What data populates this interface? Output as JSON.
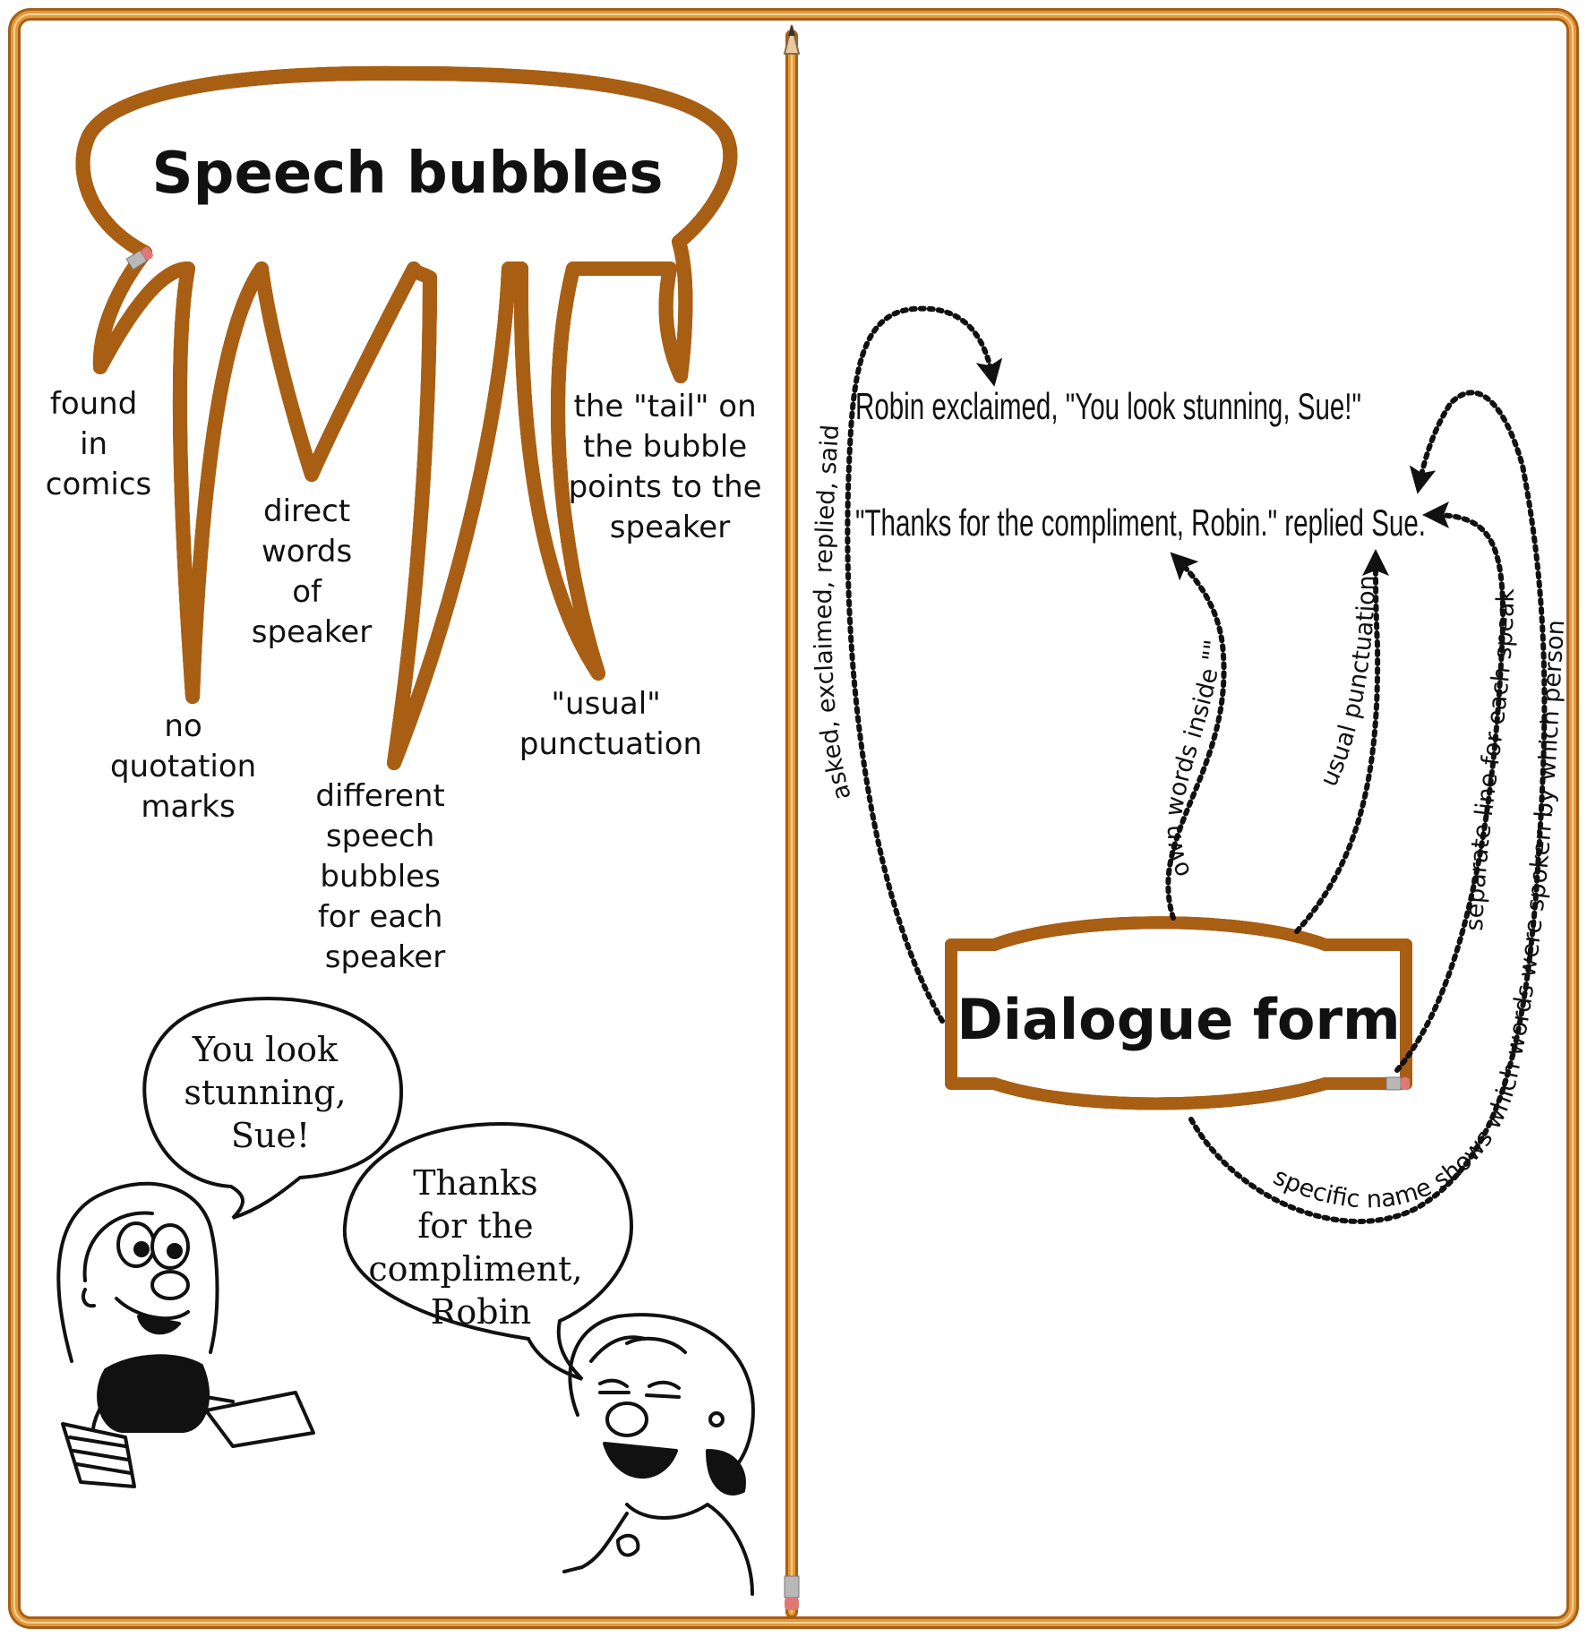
{
  "left_panel": {
    "title": "Speech bubbles",
    "tails": [
      {
        "lines": [
          "found",
          "in",
          "comics"
        ]
      },
      {
        "lines": [
          "no",
          "quotation",
          "marks"
        ]
      },
      {
        "lines": [
          "direct",
          "words",
          "of",
          "speaker"
        ]
      },
      {
        "lines": [
          "different",
          "speech",
          "bubbles",
          "for each",
          "speaker"
        ]
      },
      {
        "lines": [
          "\"usual\"",
          "punctuation"
        ]
      },
      {
        "lines": [
          "the \"tail\" on",
          "the bubble",
          "points to the",
          "speaker"
        ]
      }
    ],
    "comic": {
      "bubble1": [
        "You look",
        "stunning,",
        "Sue!"
      ],
      "bubble2": [
        "Thanks",
        "for the",
        "compliment,",
        "Robin"
      ]
    }
  },
  "right_panel": {
    "title": "Dialogue form",
    "sentence1": "Robin exclaimed, \"You look stunning, Sue!\"",
    "sentence2": "\"Thanks for the compliment, Robin.\" replied Sue.",
    "links": {
      "verbs": "asked, exclaimed, replied, said",
      "own_words": "own words inside \"\"",
      "punctuation": "usual punctuation",
      "separate_line": "separate line for each speaker",
      "specific_name": "specific name shows which words were spoken by which person"
    }
  },
  "colors": {
    "pencil": "#d98a2b",
    "pencil_dark": "#a85f14",
    "ink": "#111111"
  }
}
